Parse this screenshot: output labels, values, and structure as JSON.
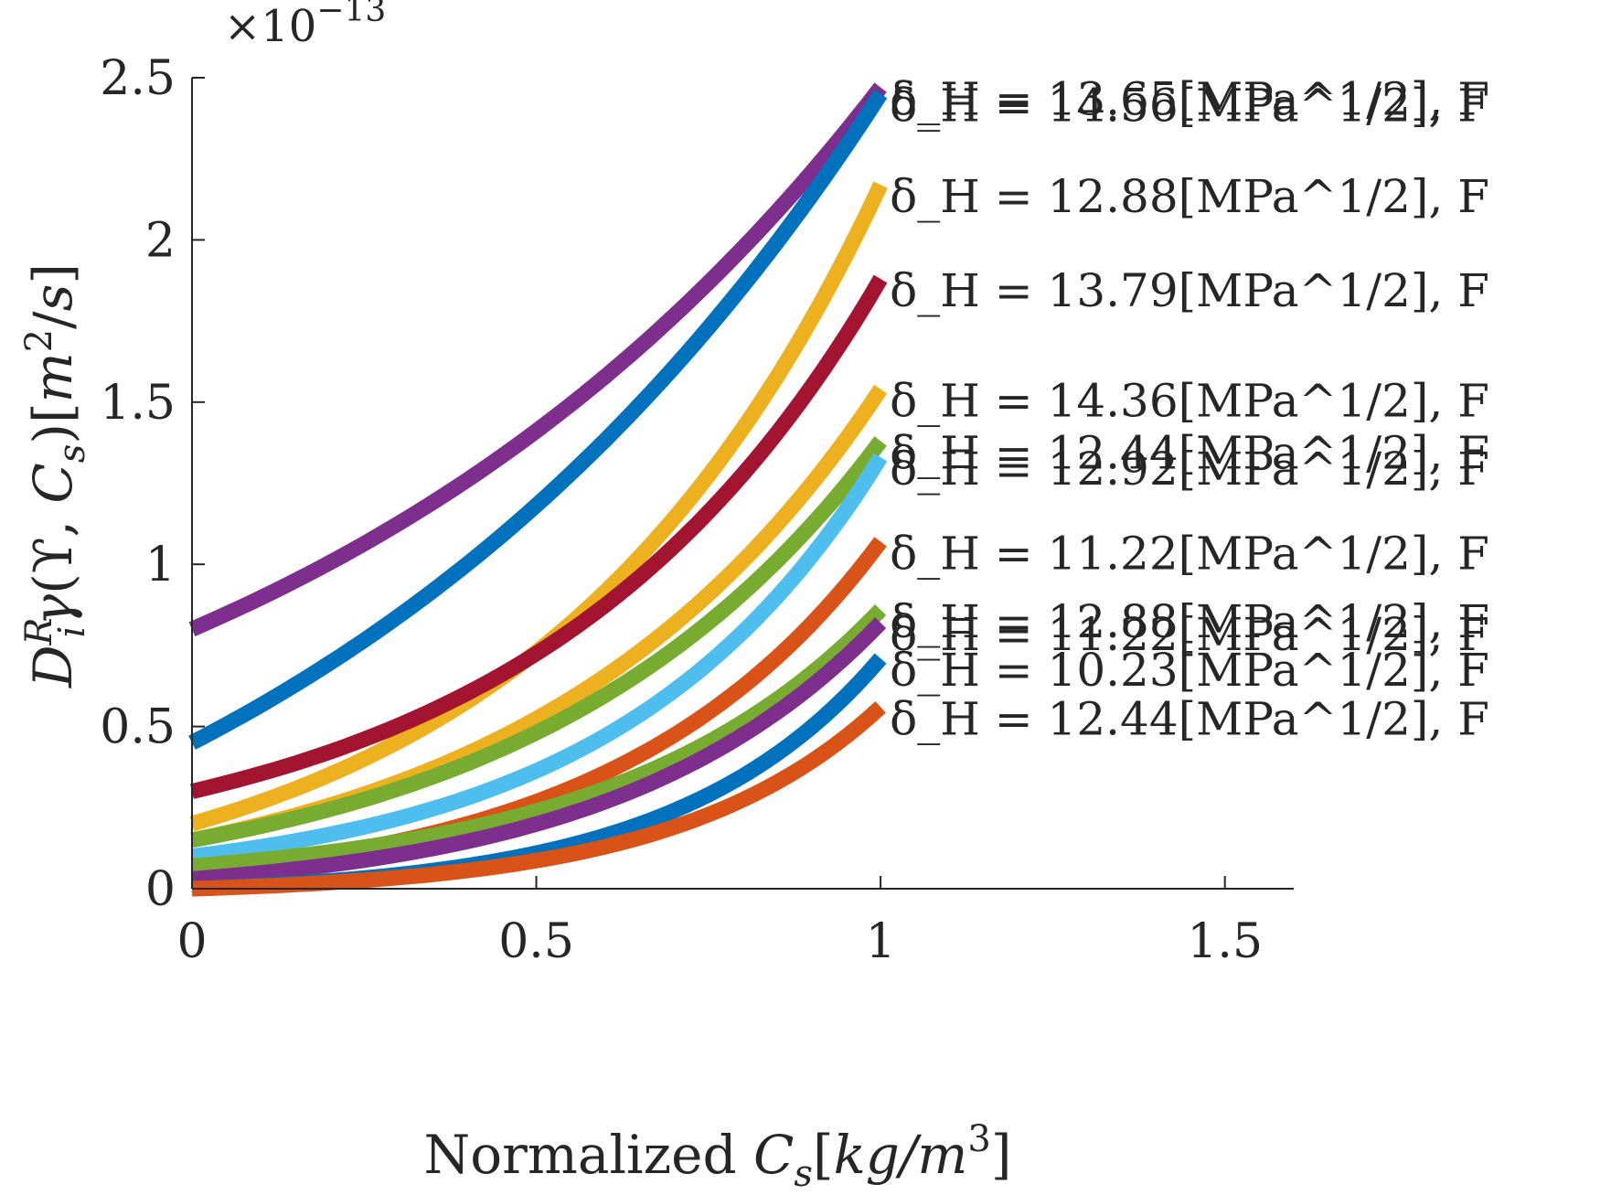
{
  "chart_data": {
    "type": "line",
    "title": "",
    "xlabel": "Normalized C_s[kg/m^3]",
    "ylabel": "D_i^R γ(ϒ, C_s)[m^2/s]",
    "y_exponent_label": "×10^-13",
    "xlim": [
      0,
      1.6
    ],
    "ylim": [
      0,
      2.5
    ],
    "xticks": [
      0,
      0.5,
      1,
      1.5
    ],
    "xtick_labels": [
      "0",
      "0.5",
      "1",
      "1.5"
    ],
    "yticks": [
      0,
      0.5,
      1,
      1.5,
      2,
      2.5
    ],
    "ytick_labels": [
      "0",
      "0.5",
      "1",
      "1.5",
      "2",
      "2.5"
    ],
    "grid": false,
    "legend": "none",
    "series": [
      {
        "color": "#7E2F8E",
        "y0": 0.8,
        "y1": 2.47,
        "label": "δ_H = 13.65[MPa^1/2], F"
      },
      {
        "color": "#0072BD",
        "y0": 0.45,
        "y1": 2.45,
        "label": "δ_H = 14.56[MPa^1/2], F"
      },
      {
        "color": "#EDB120",
        "y0": 0.2,
        "y1": 2.17,
        "label": "δ_H = 12.88[MPa^1/2], F"
      },
      {
        "color": "#A2142F",
        "y0": 0.3,
        "y1": 1.88,
        "label": "δ_H = 13.79[MPa^1/2], F"
      },
      {
        "color": "#EDB120",
        "y0": 0.15,
        "y1": 1.54,
        "label": "δ_H = 14.36[MPa^1/2], F"
      },
      {
        "color": "#77AC30",
        "y0": 0.15,
        "y1": 1.38,
        "label": "δ_H = 12.44[MPa^1/2], F"
      },
      {
        "color": "#4DBEEE",
        "y0": 0.1,
        "y1": 1.33,
        "label": "δ_H = 12.92[MPa^1/2], F"
      },
      {
        "color": "#D95319",
        "y0": 0.05,
        "y1": 1.07,
        "label": "δ_H = 11.22[MPa^1/2], F"
      },
      {
        "color": "#77AC30",
        "y0": 0.07,
        "y1": 0.86,
        "label": "δ_H = 12.88[MPa^1/2], F"
      },
      {
        "color": "#7E2F8E",
        "y0": 0.03,
        "y1": 0.82,
        "label": "δ_H = 11.22[MPa^1/2], F"
      },
      {
        "color": "#0072BD",
        "y0": 0.0,
        "y1": 0.71,
        "label": "δ_H = 10.23[MPa^1/2], F"
      },
      {
        "color": "#D95319",
        "y0": 0.0,
        "y1": 0.56,
        "label": "δ_H = 12.44[MPa^1/2], F"
      }
    ]
  }
}
